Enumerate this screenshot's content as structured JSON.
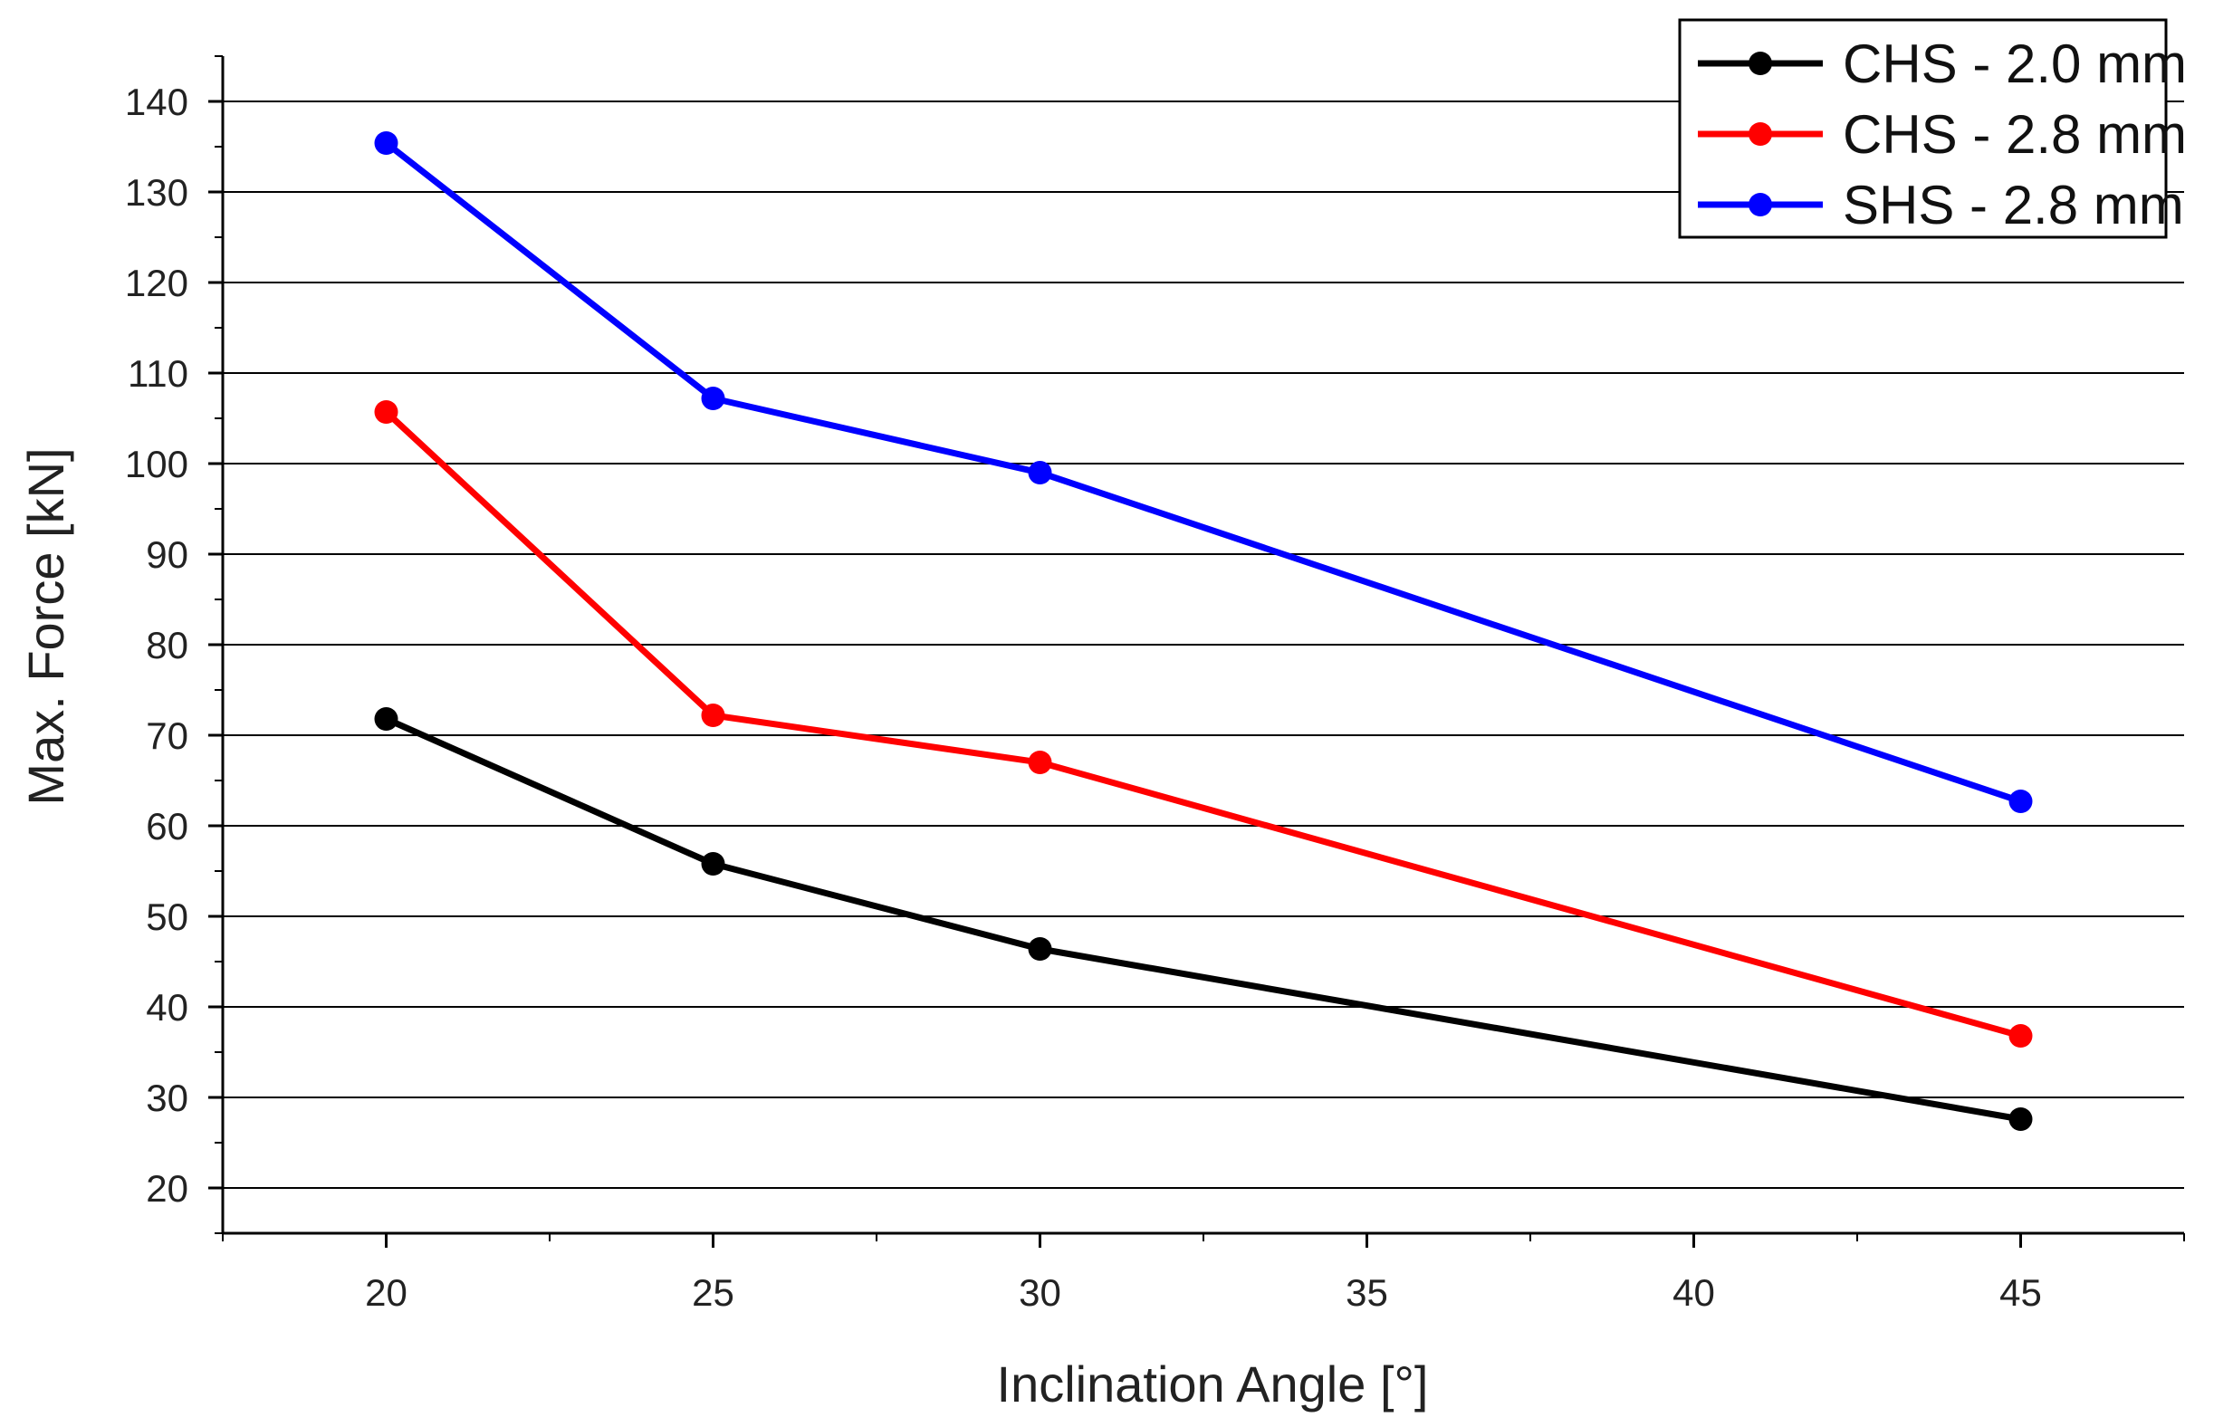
{
  "chart_data": {
    "type": "line",
    "xlabel": "Inclination Angle [°]",
    "ylabel": "Max. Force [kN]",
    "xlim": [
      17.5,
      47.5
    ],
    "ylim": [
      15,
      145
    ],
    "x_ticks": [
      20,
      25,
      30,
      35,
      40,
      45
    ],
    "x_tick_labels": [
      "20",
      "25",
      "30",
      "35",
      "40",
      "45"
    ],
    "y_ticks": [
      20,
      30,
      40,
      50,
      60,
      70,
      80,
      90,
      100,
      110,
      120,
      130,
      140
    ],
    "y_tick_labels": [
      "20",
      "30",
      "40",
      "50",
      "60",
      "70",
      "80",
      "90",
      "100",
      "110",
      "120",
      "130",
      "140"
    ],
    "grid": "horizontal",
    "legend_position": "top-right",
    "x": [
      20,
      25,
      30,
      45
    ],
    "series": [
      {
        "name": "CHS - 2.0 mm",
        "color": "#000000",
        "values": [
          71.8,
          55.8,
          46.4,
          27.6
        ]
      },
      {
        "name": "CHS - 2.8 mm",
        "color": "#ff0000",
        "values": [
          105.7,
          72.2,
          67.0,
          36.8
        ]
      },
      {
        "name": "SHS - 2.8 mm",
        "color": "#0000ff",
        "values": [
          135.4,
          107.2,
          99.0,
          62.7
        ]
      }
    ]
  }
}
